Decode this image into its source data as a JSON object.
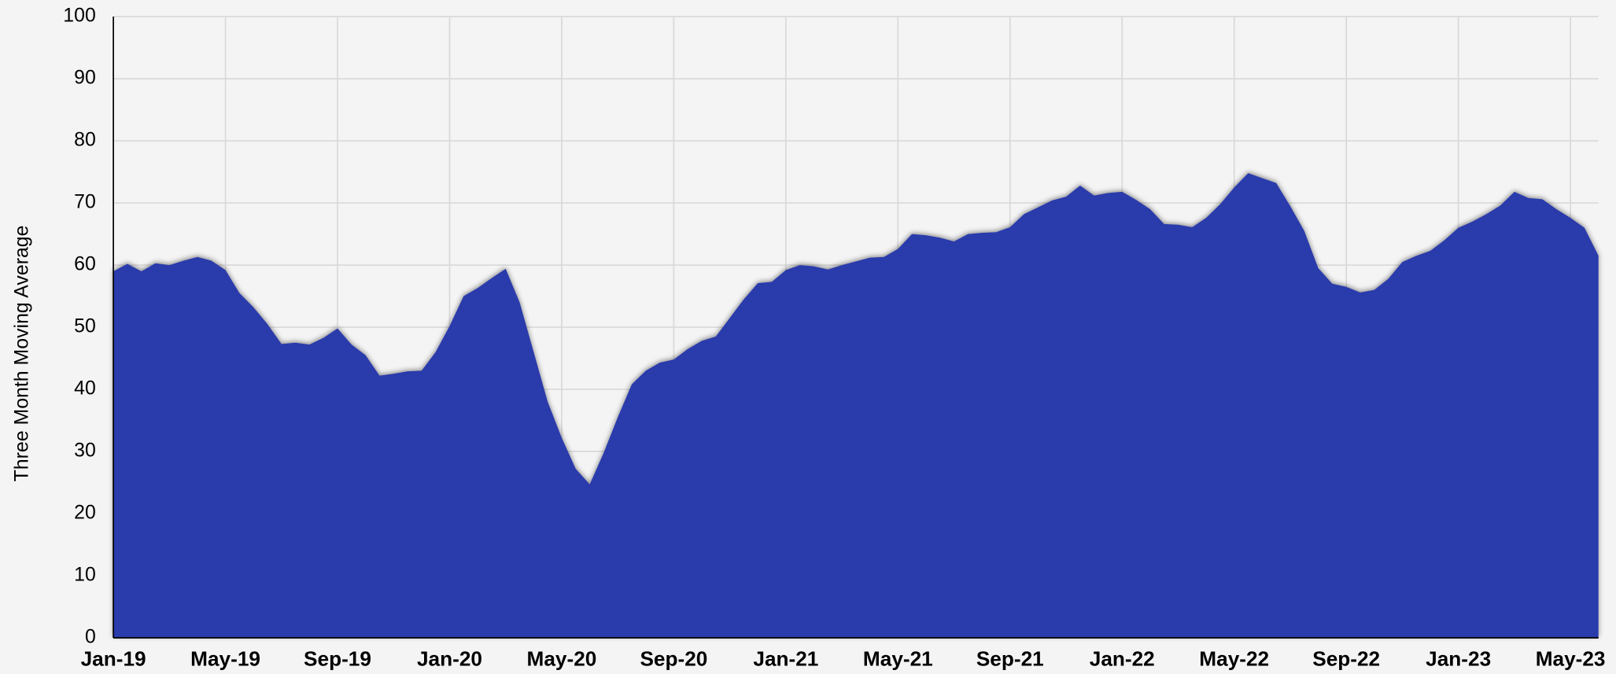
{
  "chart_data": {
    "type": "area",
    "y_label": "Three Month Moving Average",
    "color": "#2b3aab",
    "grid": true,
    "ylim": [
      0,
      100
    ],
    "yticks": [
      0,
      10,
      20,
      30,
      40,
      50,
      60,
      70,
      80,
      90,
      100
    ],
    "categories": [
      "Jan-19",
      null,
      null,
      null,
      null,
      null,
      null,
      null,
      "May-19",
      null,
      null,
      null,
      null,
      null,
      null,
      null,
      "Sep-19",
      null,
      null,
      null,
      null,
      null,
      null,
      null,
      "Jan-20",
      null,
      null,
      null,
      null,
      null,
      null,
      null,
      "May-20",
      null,
      null,
      null,
      null,
      null,
      null,
      null,
      "Sep-20",
      null,
      null,
      null,
      null,
      null,
      null,
      null,
      "Jan-21",
      null,
      null,
      null,
      null,
      null,
      null,
      null,
      "May-21",
      null,
      null,
      null,
      null,
      null,
      null,
      null,
      "Sep-21",
      null,
      null,
      null,
      null,
      null,
      null,
      null,
      "Jan-22",
      null,
      null,
      null,
      null,
      null,
      null,
      null,
      "May-22",
      null,
      null,
      null,
      null,
      null,
      null,
      null,
      "Sep-22",
      null,
      null,
      null,
      null,
      null,
      null,
      null,
      "Jan-23",
      null,
      null,
      null,
      null,
      null,
      null,
      null,
      "May-23",
      null,
      null
    ],
    "values": [
      59,
      60.2,
      59,
      60.3,
      60,
      60.7,
      61.3,
      60.7,
      59.2,
      55.5,
      53.2,
      50.5,
      47.3,
      47.5,
      47.2,
      48.3,
      49.8,
      47.2,
      45.5,
      42.2,
      42.5,
      42.9,
      43,
      46,
      50.2,
      55,
      56.3,
      57.9,
      59.4,
      54,
      46,
      38,
      32.2,
      27.2,
      24.7,
      29.8,
      35.5,
      40.8,
      43,
      44.3,
      44.8,
      46.5,
      47.8,
      48.5,
      51.5,
      54.5,
      57.1,
      57.3,
      59.2,
      60,
      59.8,
      59.3,
      60,
      60.6,
      61.2,
      61.3,
      62.6,
      65,
      64.8,
      64.4,
      63.8,
      65,
      65.2,
      65.3,
      66.1,
      68.2,
      69.3,
      70.4,
      71,
      72.8,
      71.2,
      71.6,
      71.8,
      70.5,
      69,
      66.6,
      66.5,
      66.1,
      67.6,
      69.8,
      72.5,
      74.8,
      74,
      73.2,
      69.5,
      65.5,
      59.5,
      57,
      56.5,
      55.6,
      56,
      57.8,
      60.5,
      61.5,
      62.3,
      64,
      66,
      67,
      68.2,
      69.6,
      71.8,
      70.8,
      70.6,
      69,
      67.6,
      66,
      61.5
    ]
  }
}
